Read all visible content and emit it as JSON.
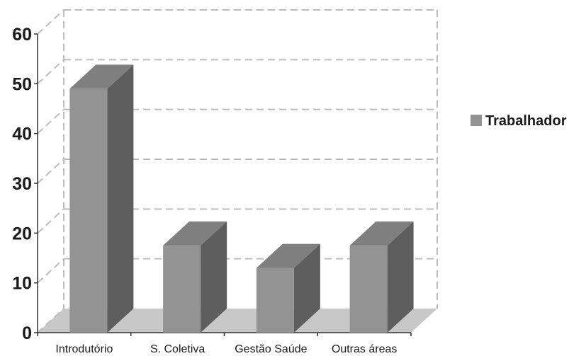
{
  "chart_data": {
    "type": "bar",
    "categories": [
      "Introdutório",
      "S. Coletiva",
      "Gestão Saúde",
      "Outras áreas"
    ],
    "series": [
      {
        "name": "Trabalhador",
        "values": [
          49,
          17.5,
          13,
          17.5
        ]
      }
    ],
    "ylim": [
      0,
      60
    ],
    "yticks": [
      0,
      10,
      20,
      30,
      40,
      50,
      60
    ],
    "grid": true,
    "legend_position": "right",
    "three_d": true,
    "colors": {
      "bar_front": "#939393",
      "bar_top": "#7f7f7f",
      "bar_side": "#5e5e5e",
      "floor": "#c8c8c8",
      "grid": "#bdbdbd",
      "legend_swatch": "#939393"
    }
  }
}
